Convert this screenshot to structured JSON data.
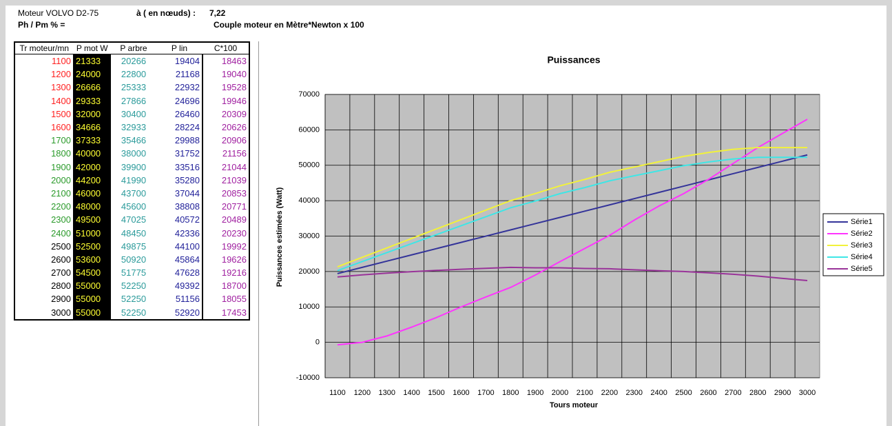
{
  "header": {
    "engine": "Moteur VOLVO D2-75",
    "speed_label": "à ( en nœuds) :",
    "speed_value": "7,22",
    "ratio_label": "Ph / Pm % =",
    "torque_note": "Couple moteur en Mètre*Newton x 100"
  },
  "table": {
    "columns": [
      "Tr moteur/mn",
      "P mot W",
      "P arbre",
      "P lin",
      "C*100"
    ],
    "rpm_colors": [
      "#ff2020",
      "#ff2020",
      "#ff2020",
      "#ff2020",
      "#ff2020",
      "#ff2020",
      "#2a9a2a",
      "#2a9a2a",
      "#2a9a2a",
      "#2a9a2a",
      "#2a9a2a",
      "#2a9a2a",
      "#2a9a2a",
      "#2a9a2a",
      "#000000",
      "#000000",
      "#000000",
      "#000000",
      "#000000",
      "#000000"
    ],
    "rows": [
      [
        1100,
        21333,
        20266,
        19404,
        18463
      ],
      [
        1200,
        24000,
        22800,
        21168,
        19040
      ],
      [
        1300,
        26666,
        25333,
        22932,
        19528
      ],
      [
        1400,
        29333,
        27866,
        24696,
        19946
      ],
      [
        1500,
        32000,
        30400,
        26460,
        20309
      ],
      [
        1600,
        34666,
        32933,
        28224,
        20626
      ],
      [
        1700,
        37333,
        35466,
        29988,
        20906
      ],
      [
        1800,
        40000,
        38000,
        31752,
        21156
      ],
      [
        1900,
        42000,
        39900,
        33516,
        21044
      ],
      [
        2000,
        44200,
        41990,
        35280,
        21039
      ],
      [
        2100,
        46000,
        43700,
        37044,
        20853
      ],
      [
        2200,
        48000,
        45600,
        38808,
        20771
      ],
      [
        2300,
        49500,
        47025,
        40572,
        20489
      ],
      [
        2400,
        51000,
        48450,
        42336,
        20230
      ],
      [
        2500,
        52500,
        49875,
        44100,
        19992
      ],
      [
        2600,
        53600,
        50920,
        45864,
        19626
      ],
      [
        2700,
        54500,
        51775,
        47628,
        19216
      ],
      [
        2800,
        55000,
        52250,
        49392,
        18700
      ],
      [
        2900,
        55000,
        52250,
        51156,
        18055
      ],
      [
        3000,
        55000,
        52250,
        52920,
        17453
      ]
    ]
  },
  "chart_data": {
    "type": "line",
    "title": "Puissances",
    "x_label": "Tours moteur",
    "y_label": "Puissances estimées (Watt)",
    "categories": [
      1100,
      1200,
      1300,
      1400,
      1500,
      1600,
      1700,
      1800,
      1900,
      2000,
      2100,
      2200,
      2300,
      2400,
      2500,
      2600,
      2700,
      2800,
      2900,
      3000
    ],
    "ylim": [
      -10000,
      70000
    ],
    "yticks": [
      -10000,
      0,
      10000,
      20000,
      30000,
      40000,
      50000,
      60000,
      70000
    ],
    "grid": true,
    "legend": "right",
    "series": [
      {
        "name": "Série1",
        "color": "#333399",
        "values": [
          19404,
          21168,
          22932,
          24696,
          26460,
          28224,
          29988,
          31752,
          33516,
          35280,
          37044,
          38808,
          40572,
          42336,
          44100,
          45864,
          47628,
          49392,
          51156,
          52920
        ]
      },
      {
        "name": "Série2",
        "color": "#ff33ff",
        "values": [
          -700,
          0,
          1800,
          4300,
          7000,
          10000,
          12800,
          15500,
          19000,
          22800,
          26500,
          30200,
          34500,
          38500,
          42000,
          46000,
          50500,
          55000,
          59000,
          63000
        ]
      },
      {
        "name": "Série3",
        "color": "#f2f23a",
        "values": [
          21333,
          24000,
          26666,
          29333,
          32000,
          34666,
          37333,
          40000,
          42000,
          44200,
          46000,
          48000,
          49500,
          51000,
          52500,
          53600,
          54500,
          55000,
          55000,
          55000
        ]
      },
      {
        "name": "Série4",
        "color": "#3ee6e6",
        "values": [
          20266,
          22800,
          25333,
          27866,
          30400,
          32933,
          35466,
          38000,
          39900,
          41990,
          43700,
          45600,
          47025,
          48450,
          49875,
          50920,
          51775,
          52250,
          52250,
          52250
        ]
      },
      {
        "name": "Série5",
        "color": "#993399",
        "values": [
          18463,
          19040,
          19528,
          19946,
          20309,
          20626,
          20906,
          21156,
          21044,
          21039,
          20853,
          20771,
          20489,
          20230,
          19992,
          19626,
          19216,
          18700,
          18055,
          17453
        ]
      }
    ]
  }
}
